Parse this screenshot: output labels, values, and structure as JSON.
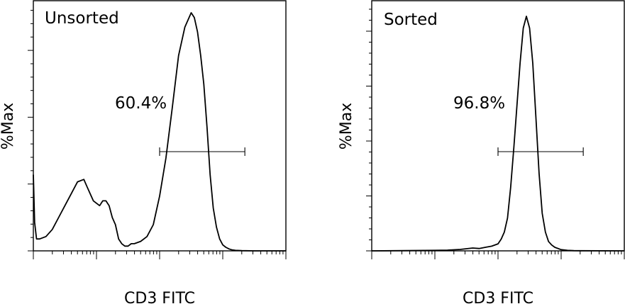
{
  "chart_data": [
    {
      "type": "line",
      "panel_label": "Unsorted",
      "xlabel": "CD3 FITC",
      "ylabel": "%Max",
      "gate_label": "60.4%",
      "xscale": "log",
      "xlim": [
        0,
        4
      ],
      "ylim": [
        0,
        100
      ],
      "gate": [
        2.0,
        3.35
      ],
      "series": [
        {
          "x": [
            0.0,
            0.02,
            0.05,
            0.1,
            0.2,
            0.3,
            0.4,
            0.5,
            0.6,
            0.7,
            0.8,
            0.85,
            0.9,
            0.95,
            1.0,
            1.05,
            1.1,
            1.15,
            1.2,
            1.25,
            1.3,
            1.35,
            1.4,
            1.45,
            1.5,
            1.55,
            1.6,
            1.7,
            1.8,
            1.9,
            2.0,
            2.1,
            2.2,
            2.3,
            2.4,
            2.5,
            2.55,
            2.6,
            2.65,
            2.7,
            2.75,
            2.8,
            2.85,
            2.9,
            2.95,
            3.0,
            3.05,
            3.1,
            3.15,
            3.2,
            3.3,
            3.5,
            4.0
          ],
          "y": [
            32,
            12,
            5,
            5,
            6,
            9,
            14,
            19,
            24,
            29,
            30,
            27,
            24,
            21,
            20,
            19,
            21,
            21,
            19,
            14,
            11,
            5,
            3,
            2,
            2,
            3,
            3,
            4,
            6,
            11,
            23,
            39,
            60,
            82,
            94,
            100,
            98,
            92,
            82,
            70,
            52,
            32,
            18,
            10,
            5,
            2.5,
            1.5,
            0.8,
            0.4,
            0.2,
            0.1,
            0,
            0
          ]
        }
      ]
    },
    {
      "type": "line",
      "panel_label": "Sorted",
      "xlabel": "CD3 FITC",
      "ylabel": "%Max",
      "gate_label": "96.8%",
      "xscale": "log",
      "xlim": [
        0,
        4
      ],
      "ylim": [
        0,
        100
      ],
      "gate": [
        2.0,
        3.35
      ],
      "series": [
        {
          "x": [
            0.0,
            0.5,
            1.0,
            1.2,
            1.4,
            1.6,
            1.7,
            1.8,
            1.9,
            2.0,
            2.05,
            2.1,
            2.15,
            2.2,
            2.25,
            2.3,
            2.35,
            2.4,
            2.45,
            2.5,
            2.55,
            2.6,
            2.65,
            2.7,
            2.75,
            2.8,
            2.85,
            2.9,
            3.0,
            3.1,
            3.2,
            3.3,
            4.0
          ],
          "y": [
            0,
            0.1,
            0.2,
            0.3,
            0.6,
            1.2,
            1.0,
            1.5,
            2,
            3,
            5,
            8,
            14,
            27,
            44,
            62,
            80,
            95,
            100,
            95,
            80,
            57,
            33,
            16,
            8,
            4,
            2.5,
            1.5,
            0.5,
            0.2,
            0.1,
            0.05,
            0
          ]
        }
      ]
    }
  ]
}
